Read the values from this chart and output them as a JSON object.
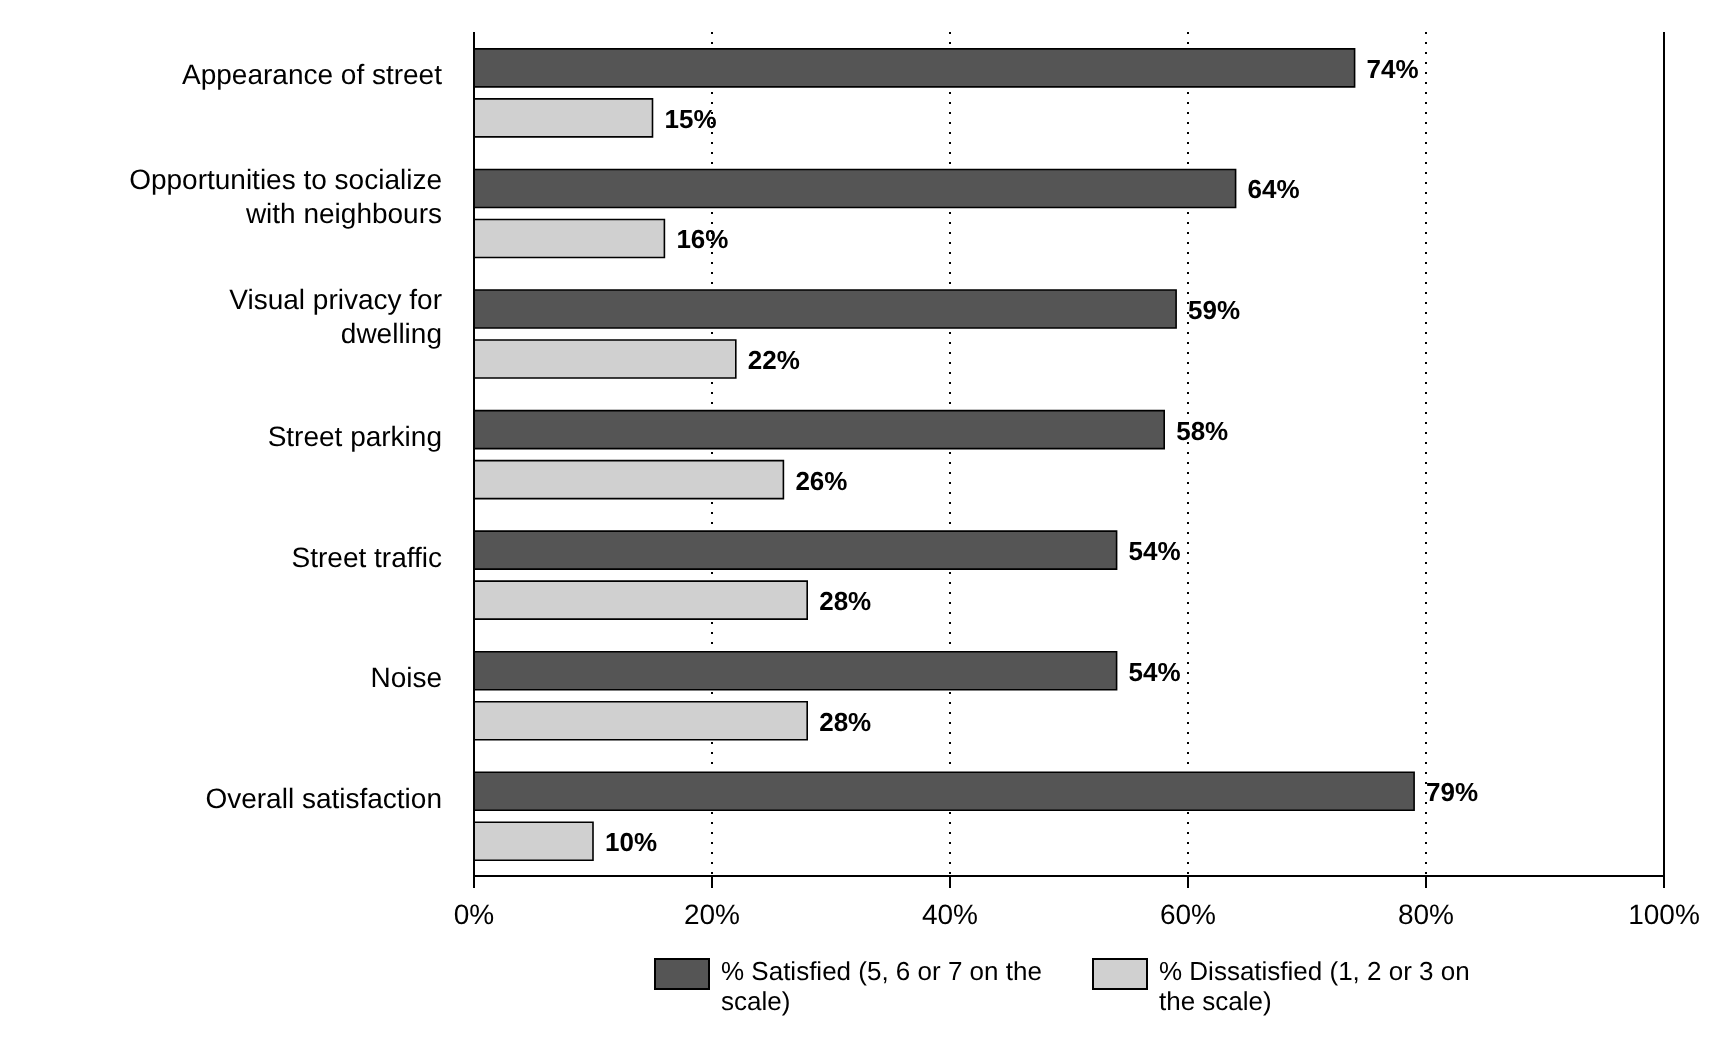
{
  "chart_data": {
    "type": "bar",
    "orientation": "horizontal",
    "categories": [
      "Appearance of street",
      "Opportunities to socialize with neighbours",
      "Visual privacy for dwelling",
      "Street parking",
      "Street traffic",
      "Noise",
      "Overall satisfaction"
    ],
    "series": [
      {
        "name": "% Satisfied (5, 6 or 7 on the scale)",
        "color": "#555555",
        "values": [
          74,
          64,
          59,
          58,
          54,
          54,
          79
        ],
        "value_labels": [
          "74%",
          "64%",
          "59%",
          "58%",
          "54%",
          "54%",
          "79%"
        ]
      },
      {
        "name": "% Dissatisfied (1, 2 or 3 on the scale)",
        "color": "#d0d0d0",
        "values": [
          15,
          16,
          22,
          26,
          28,
          28,
          10
        ],
        "value_labels": [
          "15%",
          "16%",
          "22%",
          "26%",
          "28%",
          "28%",
          "10%"
        ]
      }
    ],
    "xlim": [
      0,
      100
    ],
    "xticks": [
      {
        "value": 0,
        "label": "0%"
      },
      {
        "value": 20,
        "label": "20%"
      },
      {
        "value": 40,
        "label": "40%"
      },
      {
        "value": 60,
        "label": "60%"
      },
      {
        "value": 80,
        "label": "80%"
      },
      {
        "value": 100,
        "label": "100%"
      }
    ],
    "grid": "x",
    "line_style": "dotted",
    "legend": "bottom"
  }
}
